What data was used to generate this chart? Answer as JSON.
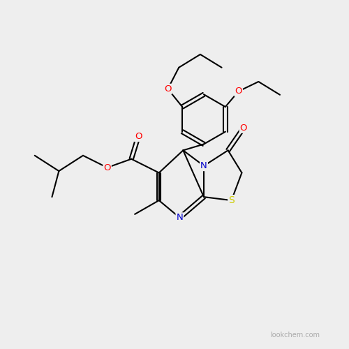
{
  "bg_color": "#eeeeee",
  "bond_color": "#000000",
  "atom_colors": {
    "O": "#ff0000",
    "N": "#0000cc",
    "S": "#cccc00",
    "C": "#000000"
  },
  "bond_width": 1.5,
  "watermark": "lookchem.com",
  "watermark_color": "#999999",
  "watermark_fontsize": 7
}
